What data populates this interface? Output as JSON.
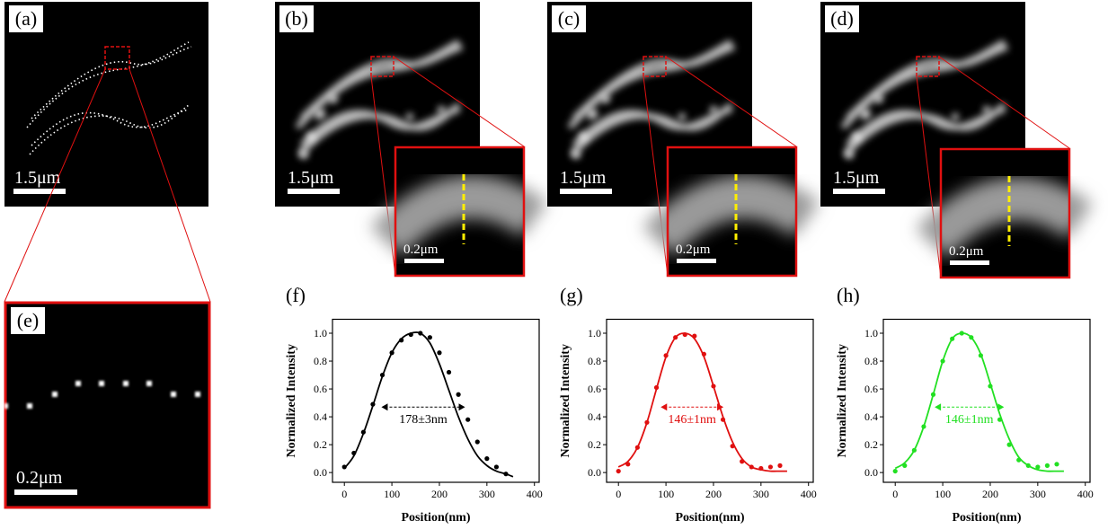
{
  "figure": {
    "panels": [
      {
        "label": "(a)",
        "scale": "1.5μm"
      },
      {
        "label": "(b)",
        "scale": "1.5μm",
        "inset_scale": "0.2μm"
      },
      {
        "label": "(c)",
        "scale": "1.5μm",
        "inset_scale": "0.2μm"
      },
      {
        "label": "(d)",
        "scale": "1.5μm",
        "inset_scale": "0.2μm"
      },
      {
        "label": "(e)",
        "scale": "0.2μm"
      }
    ]
  },
  "chart_data": [
    {
      "type": "line",
      "label": "(f)",
      "x_label": "Position(nm)",
      "y_label": "Normalized Intensity",
      "xlim": [
        -25,
        410
      ],
      "xticks": [
        0,
        100,
        200,
        300,
        400
      ],
      "ylim": [
        -0.07,
        1.1
      ],
      "yticks": [
        {
          "value": 0,
          "label": "0.0"
        },
        0.2,
        0.4,
        0.6,
        0.8,
        {
          "value": 1,
          "label": "1.0"
        }
      ],
      "series": [
        {
          "style": "points",
          "color": "#000000",
          "x": [
            0,
            20,
            40,
            60,
            80,
            100,
            120,
            140,
            160,
            180,
            200,
            220,
            240,
            260,
            280,
            300,
            320,
            340
          ],
          "values": [
            0.04,
            0.14,
            0.29,
            0.49,
            0.7,
            0.86,
            0.95,
            0.99,
            1.0,
            0.97,
            0.86,
            0.72,
            0.56,
            0.38,
            0.22,
            0.1,
            0.04,
            -0.01
          ]
        },
        {
          "style": "line",
          "color": "#000000",
          "x": [
            0,
            20,
            40,
            60,
            80,
            100,
            120,
            140,
            160,
            180,
            200,
            220,
            240,
            260,
            280,
            300,
            320,
            340,
            355
          ],
          "values": [
            0.03,
            0.12,
            0.28,
            0.48,
            0.69,
            0.86,
            0.96,
            1.0,
            1.0,
            0.93,
            0.78,
            0.59,
            0.4,
            0.24,
            0.12,
            0.05,
            0.01,
            -0.01,
            -0.03
          ]
        }
      ],
      "annotation": {
        "text": "178±3nm",
        "arrow_x": [
          78,
          254
        ],
        "arrow_y": 0.47
      }
    },
    {
      "type": "line",
      "label": "(g)",
      "x_label": "Position(nm)",
      "y_label": "Normalized Intensity",
      "xlim": [
        -25,
        410
      ],
      "xticks": [
        0,
        100,
        200,
        300,
        400
      ],
      "ylim": [
        -0.07,
        1.1
      ],
      "yticks": [
        {
          "value": 0,
          "label": "0.0"
        },
        0.2,
        0.4,
        0.6,
        0.8,
        {
          "value": 1,
          "label": "1.0"
        }
      ],
      "series": [
        {
          "style": "points",
          "color": "#e01010",
          "x": [
            0,
            20,
            40,
            60,
            80,
            100,
            120,
            140,
            160,
            180,
            200,
            220,
            240,
            260,
            280,
            300,
            320,
            340
          ],
          "values": [
            0.01,
            0.06,
            0.18,
            0.36,
            0.61,
            0.84,
            0.97,
            0.99,
            0.98,
            0.85,
            0.62,
            0.38,
            0.19,
            0.08,
            0.04,
            0.03,
            0.04,
            0.05
          ]
        },
        {
          "style": "line",
          "color": "#e01010",
          "x": [
            0,
            20,
            40,
            60,
            80,
            100,
            120,
            140,
            160,
            180,
            200,
            220,
            240,
            260,
            280,
            300,
            320,
            340,
            355
          ],
          "values": [
            0.04,
            0.08,
            0.18,
            0.36,
            0.6,
            0.83,
            0.97,
            1.0,
            0.96,
            0.83,
            0.62,
            0.4,
            0.22,
            0.1,
            0.04,
            0.02,
            0.01,
            0.01,
            0.01
          ]
        }
      ],
      "annotation": {
        "text": "146±1nm",
        "arrow_x": [
          89,
          221
        ],
        "arrow_y": 0.47
      }
    },
    {
      "type": "line",
      "label": "(h)",
      "x_label": "Position(nm)",
      "y_label": "Normalized Intensity",
      "xlim": [
        -25,
        410
      ],
      "xticks": [
        0,
        100,
        200,
        300,
        400
      ],
      "ylim": [
        -0.07,
        1.1
      ],
      "yticks": [
        {
          "value": 0,
          "label": "0.0"
        },
        0.2,
        0.4,
        0.6,
        0.8,
        {
          "value": 1,
          "label": "1.0"
        }
      ],
      "series": [
        {
          "style": "points",
          "color": "#22e022",
          "x": [
            0,
            20,
            40,
            60,
            80,
            100,
            120,
            140,
            160,
            180,
            200,
            220,
            240,
            260,
            280,
            300,
            320,
            340
          ],
          "values": [
            0.01,
            0.05,
            0.16,
            0.33,
            0.56,
            0.8,
            0.96,
            1.0,
            0.97,
            0.84,
            0.62,
            0.38,
            0.2,
            0.09,
            0.05,
            0.04,
            0.05,
            0.06
          ]
        },
        {
          "style": "line",
          "color": "#22e022",
          "x": [
            0,
            20,
            40,
            60,
            80,
            100,
            120,
            140,
            160,
            180,
            200,
            220,
            240,
            260,
            280,
            300,
            320,
            340,
            355
          ],
          "values": [
            0.03,
            0.07,
            0.16,
            0.33,
            0.56,
            0.8,
            0.96,
            1.0,
            0.97,
            0.85,
            0.64,
            0.42,
            0.24,
            0.11,
            0.05,
            0.02,
            0.01,
            0.01,
            0.01
          ]
        }
      ],
      "annotation": {
        "text": "146±1nm",
        "arrow_x": [
          83,
          229
        ],
        "arrow_y": 0.47
      }
    }
  ]
}
